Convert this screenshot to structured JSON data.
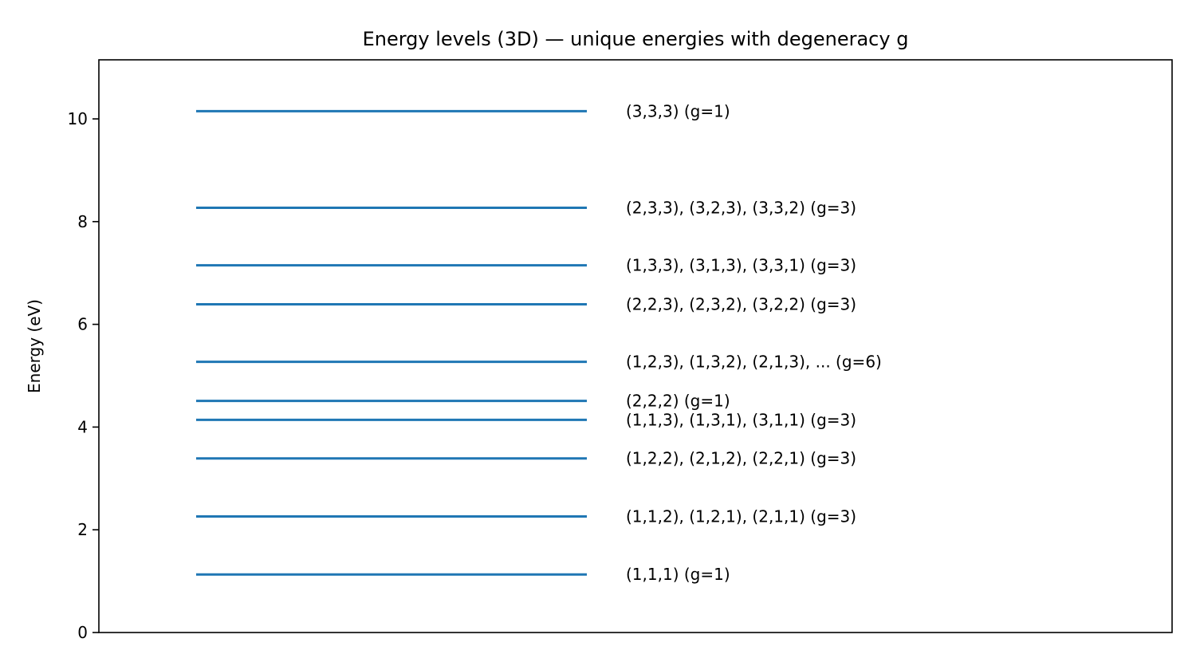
{
  "chart_data": {
    "type": "line",
    "title": "Energy levels (3D) — unique energies with degeneracy g",
    "xlabel": "",
    "ylabel": "Energy (eV)",
    "ylim": [
      0,
      11.15
    ],
    "y_ticks": [
      0,
      2,
      4,
      6,
      8,
      10
    ],
    "x_axis_visible": false,
    "grid": false,
    "line_color": "#1f77b4",
    "levels": [
      {
        "energy": 1.13,
        "label": "(1,1,1)  (g=1)"
      },
      {
        "energy": 2.26,
        "label": "(1,1,2), (1,2,1), (2,1,1)  (g=3)"
      },
      {
        "energy": 3.39,
        "label": "(1,2,2), (2,1,2), (2,2,1)  (g=3)"
      },
      {
        "energy": 4.14,
        "label": "(1,1,3), (1,3,1), (3,1,1)  (g=3)"
      },
      {
        "energy": 4.51,
        "label": "(2,2,2)  (g=1)"
      },
      {
        "energy": 5.27,
        "label": "(1,2,3), (1,3,2), (2,1,3), ... (g=6)"
      },
      {
        "energy": 6.39,
        "label": "(2,2,3), (2,3,2), (3,2,2)  (g=3)"
      },
      {
        "energy": 7.15,
        "label": "(1,3,3), (3,1,3), (3,3,1)  (g=3)"
      },
      {
        "energy": 8.27,
        "label": "(2,3,3), (3,2,3), (3,3,2)  (g=3)"
      },
      {
        "energy": 10.15,
        "label": "(3,3,3)  (g=1)"
      }
    ]
  }
}
